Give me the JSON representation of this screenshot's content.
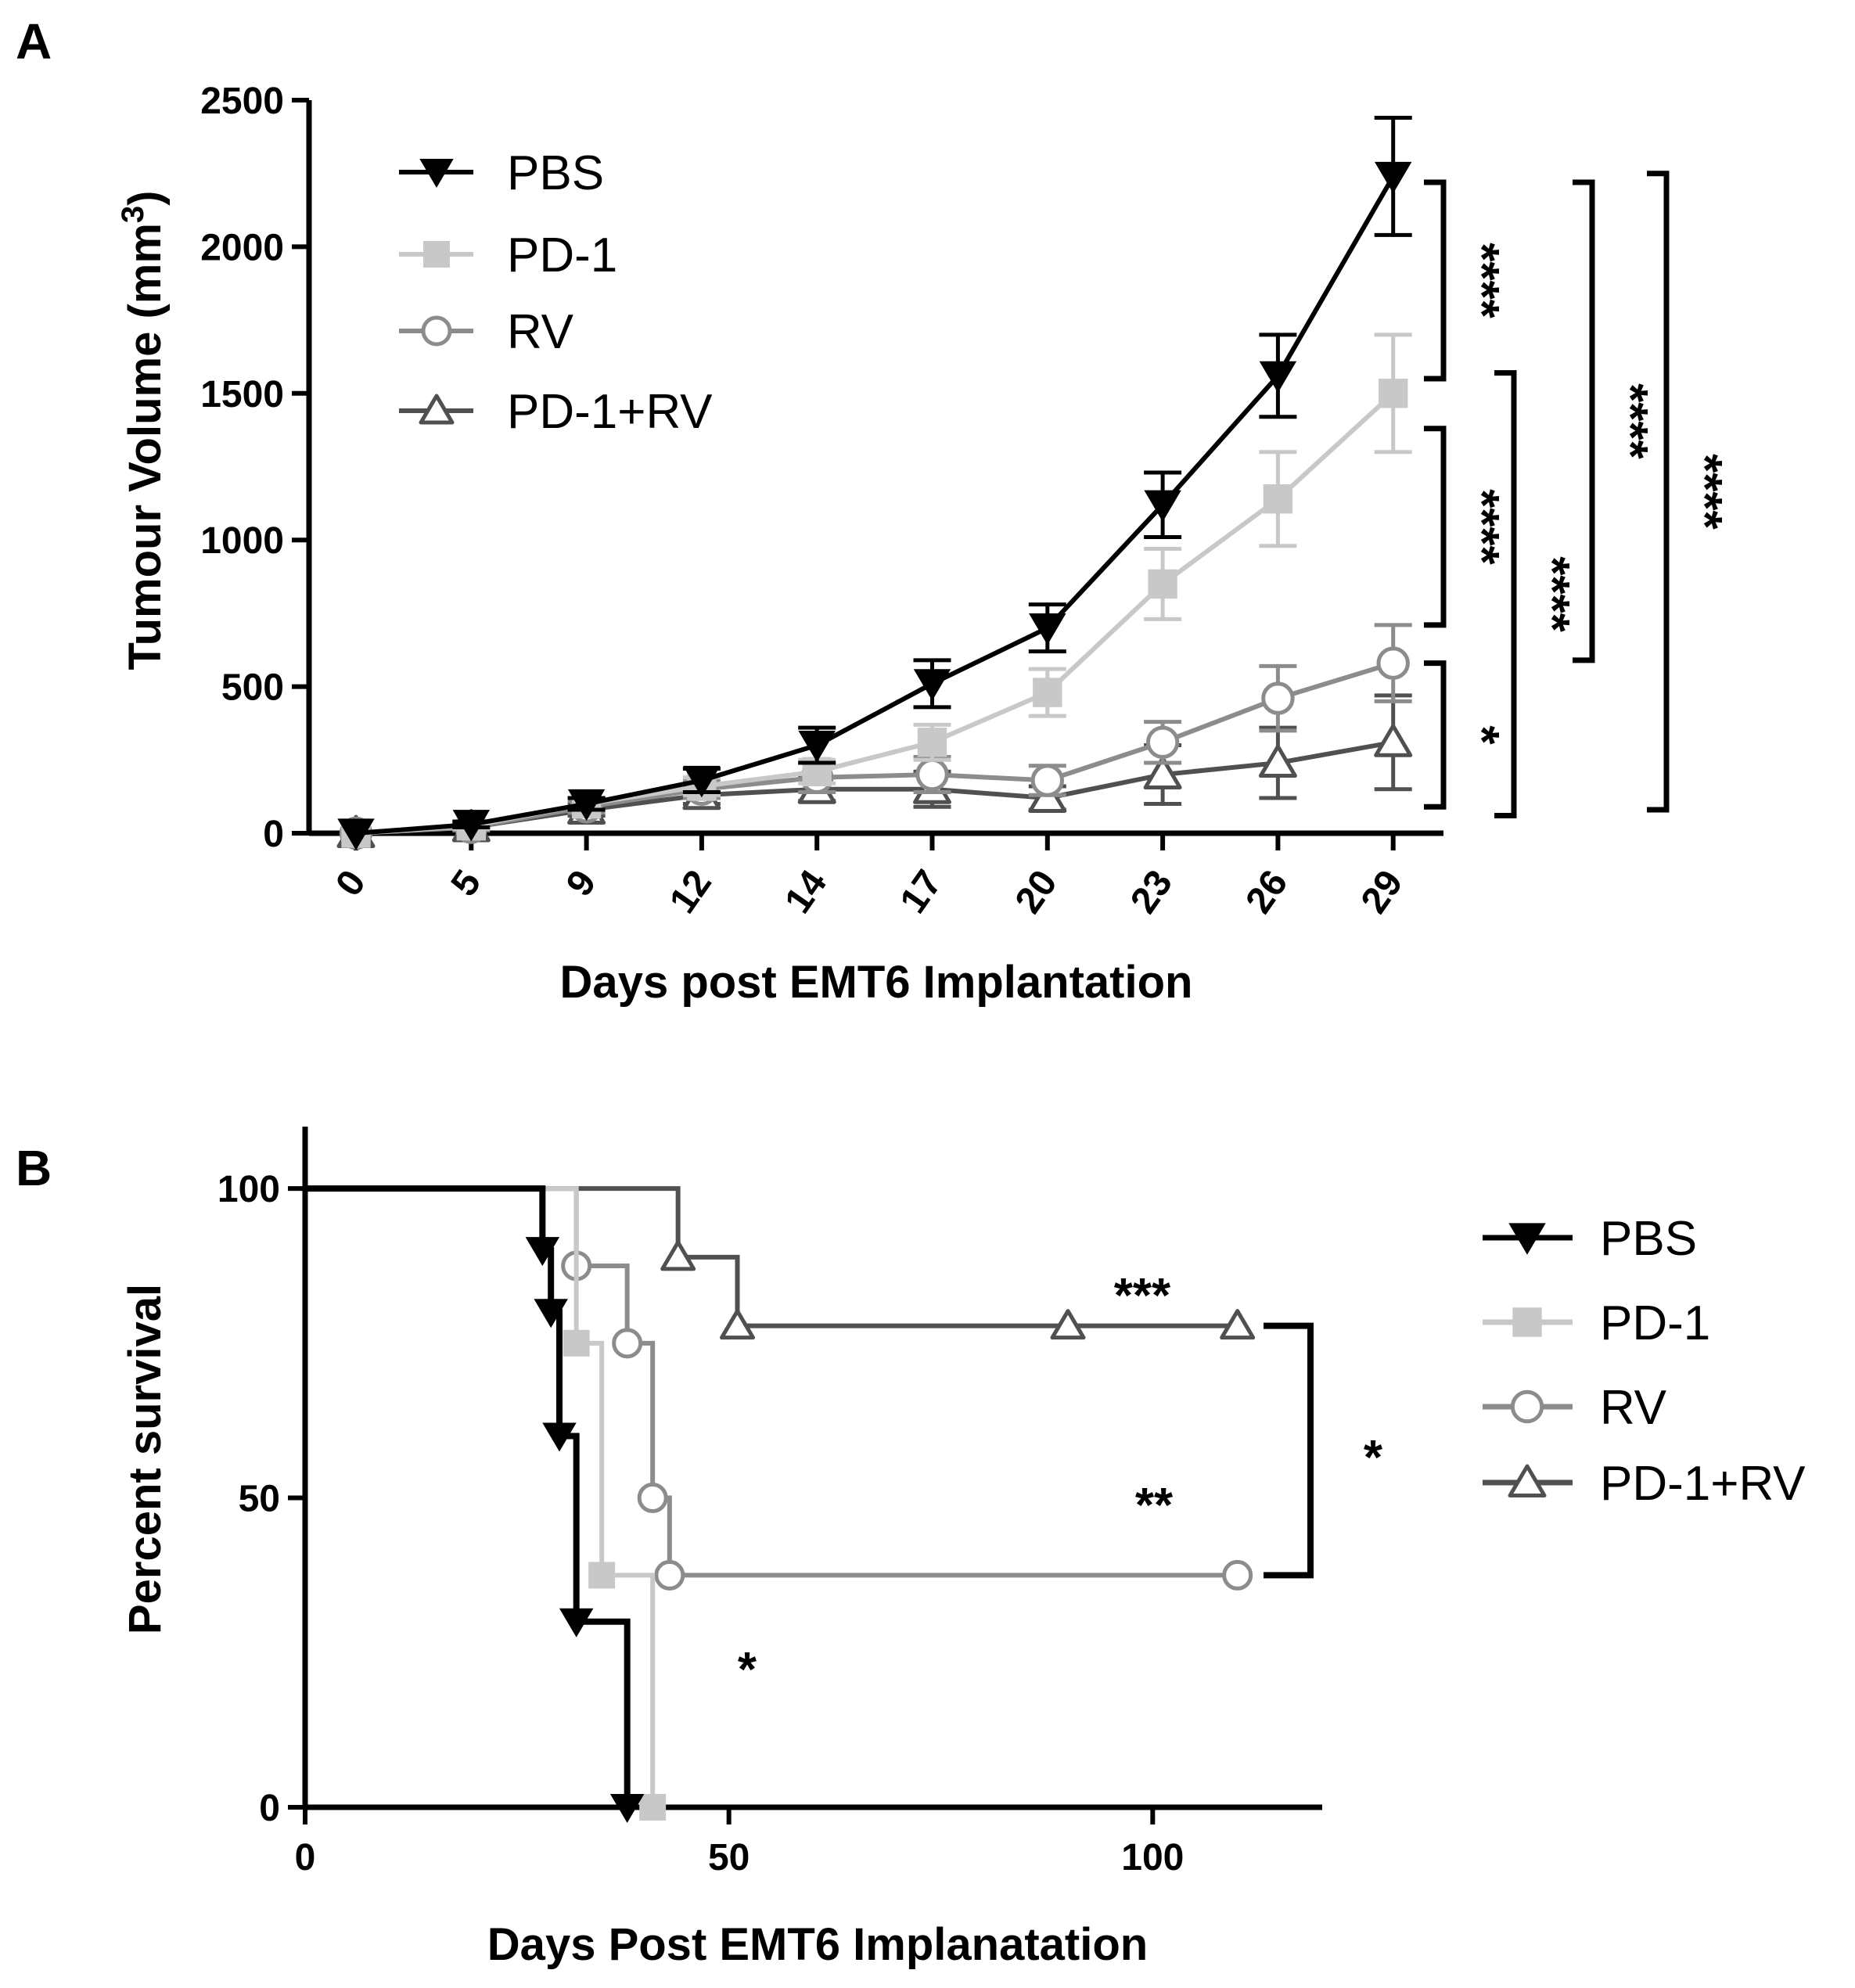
{
  "colors": {
    "PBS": "#000000",
    "PD-1": "#c8c8c8",
    "RV": "#8c8c8c",
    "PD-1+RV": "#505050"
  },
  "chart_data": [
    {
      "panel": "A",
      "type": "line",
      "xlabel": "Days post EMT6 Implantation",
      "ylabel_main": "Tumour Volume (mm",
      "ylabel_sup": "3",
      "ylabel_close": ")",
      "x_categories": [
        "0",
        "5",
        "9",
        "12",
        "14",
        "17",
        "20",
        "23",
        "26",
        "29"
      ],
      "ylim": [
        0,
        2500
      ],
      "yticks": [
        0,
        500,
        1000,
        1500,
        2000,
        2500
      ],
      "series": [
        {
          "name": "PBS",
          "marker": "triangle-down-filled",
          "values": [
            0,
            30,
            100,
            180,
            300,
            510,
            700,
            1120,
            1560,
            2240
          ],
          "errors": [
            0,
            10,
            20,
            40,
            60,
            80,
            80,
            110,
            140,
            200
          ]
        },
        {
          "name": "PD-1",
          "marker": "square-filled",
          "values": [
            0,
            25,
            100,
            160,
            210,
            310,
            480,
            850,
            1140,
            1500
          ],
          "errors": [
            0,
            10,
            20,
            30,
            40,
            60,
            80,
            120,
            160,
            200
          ]
        },
        {
          "name": "RV",
          "marker": "circle-open",
          "values": [
            0,
            20,
            90,
            150,
            190,
            200,
            180,
            310,
            460,
            580
          ],
          "errors": [
            0,
            10,
            20,
            30,
            50,
            60,
            50,
            70,
            110,
            130
          ]
        },
        {
          "name": "PD-1+RV",
          "marker": "triangle-up-open",
          "values": [
            0,
            20,
            80,
            130,
            150,
            150,
            120,
            200,
            240,
            310
          ],
          "errors": [
            0,
            10,
            20,
            30,
            40,
            60,
            40,
            100,
            120,
            160
          ]
        }
      ],
      "significance": [
        {
          "label": "****",
          "from": 1550,
          "to": 2220,
          "col": 0
        },
        {
          "label": "****",
          "from": 710,
          "to": 1380,
          "col": 0
        },
        {
          "label": "*",
          "from": 90,
          "to": 580,
          "col": 0
        },
        {
          "label": "****",
          "from": 60,
          "to": 1570,
          "col": 1
        },
        {
          "label": "****",
          "from": 590,
          "to": 2220,
          "col": 2
        },
        {
          "label": "****",
          "from": 80,
          "to": 2250,
          "col": 3
        }
      ]
    },
    {
      "panel": "B",
      "type": "line",
      "xlabel": "Days Post EMT6 Implanatation",
      "ylabel": "Percent survival",
      "xlim": [
        0,
        120
      ],
      "ylim": [
        0,
        110
      ],
      "xticks": [
        0,
        50,
        100
      ],
      "yticks": [
        0,
        50,
        100
      ],
      "series": [
        {
          "name": "PBS",
          "marker": "triangle-down-filled",
          "steps": [
            [
              0,
              100
            ],
            [
              28,
              90
            ],
            [
              29,
              80
            ],
            [
              30,
              60
            ],
            [
              32,
              30
            ],
            [
              38,
              0
            ]
          ],
          "markers": [
            [
              28,
              90
            ],
            [
              29,
              80
            ],
            [
              30,
              60
            ],
            [
              32,
              30
            ],
            [
              38,
              0
            ]
          ]
        },
        {
          "name": "PD-1",
          "marker": "square-filled",
          "steps": [
            [
              0,
              100
            ],
            [
              32,
              75
            ],
            [
              35,
              37.5
            ],
            [
              41,
              0
            ]
          ],
          "markers": [
            [
              32,
              75
            ],
            [
              35,
              37.5
            ],
            [
              41,
              0
            ]
          ]
        },
        {
          "name": "RV",
          "marker": "circle-open",
          "steps": [
            [
              0,
              100
            ],
            [
              32,
              87.5
            ],
            [
              38,
              75
            ],
            [
              41,
              50
            ],
            [
              43,
              37.5
            ],
            [
              110,
              37.5
            ]
          ],
          "markers": [
            [
              32,
              87.5
            ],
            [
              38,
              75
            ],
            [
              41,
              50
            ],
            [
              43,
              37.5
            ],
            [
              110,
              37.5
            ]
          ]
        },
        {
          "name": "PD-1+RV",
          "marker": "triangle-up-open",
          "steps": [
            [
              0,
              100
            ],
            [
              44,
              88.9
            ],
            [
              51,
              77.8
            ],
            [
              110,
              77.8
            ]
          ],
          "markers": [
            [
              44,
              88.9
            ],
            [
              51,
              77.8
            ],
            [
              90,
              77.8
            ],
            [
              110,
              77.8
            ]
          ]
        }
      ],
      "annotations": [
        {
          "label": "***",
          "x": 100,
          "y": 84
        },
        {
          "label": "**",
          "x": 100,
          "y": 50
        },
        {
          "label": "*",
          "x": 52,
          "y": 21
        }
      ],
      "bracket": {
        "label": "*",
        "from": 37.5,
        "to": 77.8
      }
    }
  ],
  "legend_a": [
    "PBS",
    "PD-1",
    "RV",
    "PD-1+RV"
  ],
  "legend_b": [
    "PBS",
    "PD-1",
    "RV",
    "PD-1+RV"
  ]
}
